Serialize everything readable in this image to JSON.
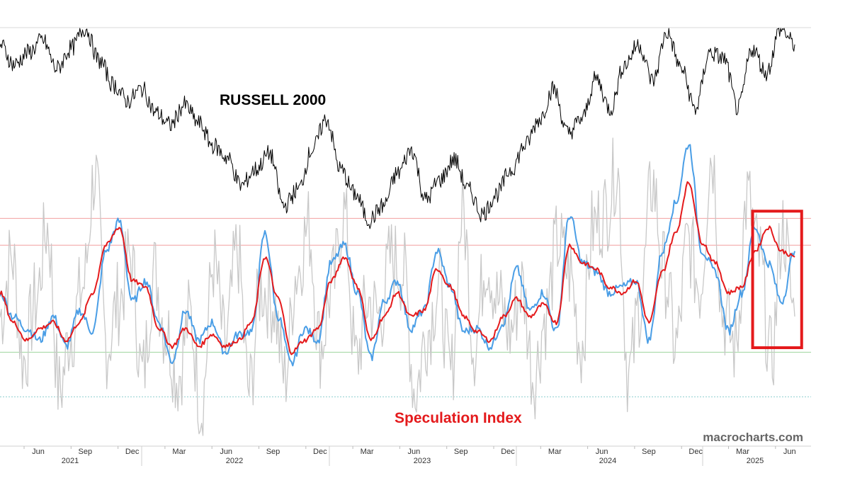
{
  "chart_data": {
    "type": "line",
    "title": "RUSSELL 2000",
    "subtitle": "Speculation Index",
    "source": "macrocharts.com",
    "colors": {
      "russell": "#000000",
      "raw": "#c8c8c8",
      "fast": "#4a9ee6",
      "slow": "#e41a1c",
      "ref_upper": "#f2a0a0",
      "ref_green": "#9ed69e",
      "ref_bottom": "#8fcfcf",
      "top_line": "#d9d9d9",
      "highlight_box": "#e41a1c"
    },
    "x_axis": {
      "month_ticks": [
        "Jun",
        "Sep",
        "Dec",
        "Mar",
        "Jun",
        "Sep",
        "Dec",
        "Mar",
        "Jun",
        "Sep",
        "Dec",
        "Mar",
        "Jun",
        "Sep",
        "Dec",
        "Mar",
        "Jun"
      ],
      "year_labels": [
        "2021",
        "2022",
        "2023",
        "2024",
        "2025"
      ]
    },
    "y_axis": {
      "labels_visible": false,
      "index_range": [
        0,
        100
      ]
    },
    "reference_lines": [
      {
        "name": "upper-extreme",
        "value": 73
      },
      {
        "name": "upper",
        "value": 64
      },
      {
        "name": "lower",
        "value": 28
      },
      {
        "name": "lower-extreme",
        "value": 13
      }
    ],
    "series": [
      {
        "name": "Russell 2000",
        "style": "price",
        "values": [
          92,
          82,
          88,
          94,
          80,
          90,
          100,
          84,
          72,
          64,
          70,
          58,
          52,
          62,
          53,
          42,
          36,
          22,
          30,
          38,
          12,
          20,
          40,
          55,
          30,
          18,
          5,
          12,
          28,
          40,
          15,
          25,
          35,
          20,
          8,
          18,
          30,
          42,
          55,
          70,
          48,
          55,
          75,
          60,
          82,
          92,
          74,
          98,
          80,
          60,
          88,
          85,
          60,
          90,
          78,
          100,
          92
        ]
      },
      {
        "name": "Raw speculation",
        "style": "raw",
        "values": [
          40,
          60,
          25,
          45,
          70,
          15,
          35,
          50,
          88,
          30,
          45,
          60,
          20,
          55,
          35,
          20,
          40,
          10,
          58,
          30,
          62,
          15,
          50,
          45,
          20,
          55,
          70,
          30,
          50,
          75,
          25,
          45,
          40,
          60,
          55,
          15,
          35,
          50,
          20,
          75,
          30,
          60,
          45,
          35,
          50,
          20,
          40,
          65,
          55,
          30,
          70,
          75,
          90,
          20,
          45,
          85,
          55,
          30,
          65,
          50,
          95,
          40,
          30,
          80,
          60,
          25,
          70,
          40
        ]
      },
      {
        "name": "Speculation fast MA",
        "style": "fast",
        "values": [
          48,
          40,
          36,
          32,
          40,
          30,
          42,
          35,
          62,
          72,
          45,
          52,
          38,
          25,
          42,
          32,
          38,
          28,
          34,
          35,
          68,
          40,
          24,
          36,
          32,
          58,
          64,
          48,
          26,
          45,
          52,
          36,
          42,
          62,
          50,
          35,
          36,
          30,
          38,
          56,
          42,
          48,
          35,
          74,
          58,
          55,
          48,
          50,
          52,
          32,
          62,
          78,
          98,
          62,
          55,
          35,
          48,
          70,
          58,
          45,
          62
        ]
      },
      {
        "name": "Speculation slow MA",
        "style": "slow",
        "values": [
          48,
          38,
          32,
          36,
          38,
          32,
          38,
          48,
          64,
          70,
          52,
          50,
          36,
          30,
          36,
          30,
          34,
          30,
          32,
          38,
          60,
          46,
          28,
          32,
          36,
          52,
          60,
          50,
          32,
          40,
          48,
          40,
          42,
          56,
          50,
          40,
          35,
          32,
          40,
          46,
          40,
          44,
          38,
          64,
          58,
          56,
          50,
          48,
          52,
          38,
          55,
          68,
          85,
          65,
          58,
          48,
          50,
          62,
          70,
          62,
          60
        ]
      }
    ],
    "annotations": [
      {
        "type": "box",
        "label": "",
        "x_range": [
          0.947,
          0.998
        ],
        "y_range": [
          40,
          64
        ]
      }
    ]
  }
}
